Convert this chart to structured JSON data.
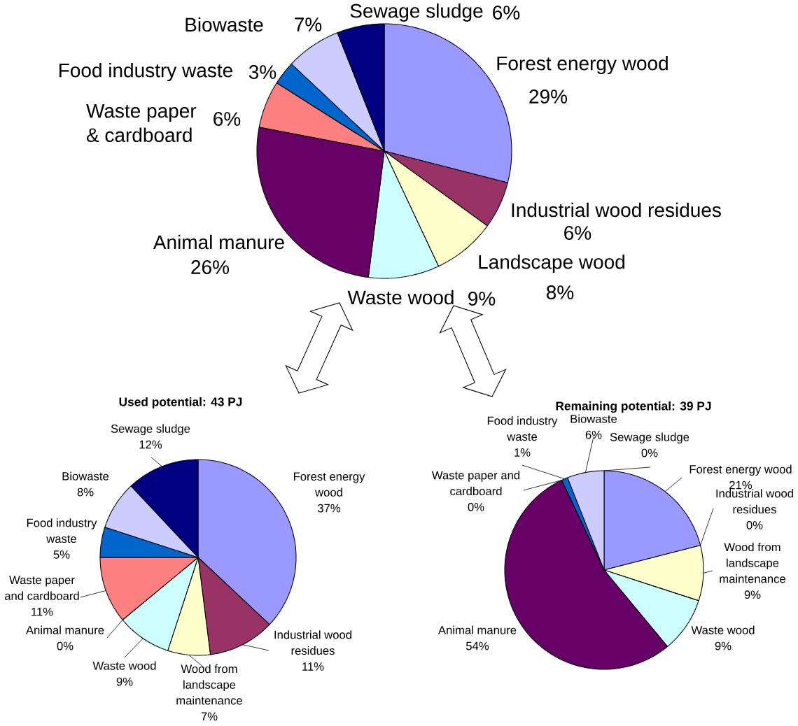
{
  "chart_data": [
    {
      "type": "pie",
      "categories": [
        "Forest energy wood",
        "Industrial wood residues",
        "Landscape wood",
        "Waste wood",
        "Animal manure",
        "Waste paper & cardboard",
        "Food industry waste",
        "Biowaste",
        "Sewage sludge"
      ],
      "values": [
        29,
        6,
        8,
        9,
        26,
        6,
        3,
        7,
        6
      ],
      "value_labels": [
        "29%",
        "6%",
        "8%",
        "9%",
        "26%",
        "6%",
        "3%",
        "7%",
        "6%"
      ],
      "colors": [
        "#9999ff",
        "#993366",
        "#ffffcc",
        "#ccffff",
        "#660066",
        "#ff8080",
        "#0066cc",
        "#ccccff",
        "#000080"
      ]
    },
    {
      "type": "pie",
      "title": "Used potential: 43 PJ",
      "categories": [
        "Forest energy wood",
        "Industrial wood residues",
        "Wood from landscape maintenance",
        "Waste wood",
        "Animal manure",
        "Waste paper and cardboard",
        "Food industry waste",
        "Biowaste",
        "Sewage sludge"
      ],
      "values": [
        37,
        11,
        7,
        9,
        0,
        11,
        5,
        8,
        12
      ],
      "value_labels": [
        "37%",
        "11%",
        "7%",
        "9%",
        "0%",
        "11%",
        "5%",
        "8%",
        "12%"
      ],
      "colors": [
        "#9999ff",
        "#993366",
        "#ffffcc",
        "#ccffff",
        "#660066",
        "#ff8080",
        "#0066cc",
        "#ccccff",
        "#000080"
      ]
    },
    {
      "type": "pie",
      "title": "Remaining potential: 39 PJ",
      "categories": [
        "Forest energy wood",
        "Industrial wood residues",
        "Wood from landscape maintenance",
        "Waste wood",
        "Animal manure",
        "Waste paper and cardboard",
        "Food industry waste",
        "Biowaste",
        "Sewage sludge"
      ],
      "values": [
        21,
        0,
        9,
        9,
        54,
        0,
        1,
        6,
        0
      ],
      "value_labels": [
        "21%",
        "0%",
        "9%",
        "9%",
        "54%",
        "0%",
        "1%",
        "6%",
        "0%"
      ],
      "colors": [
        "#9999ff",
        "#993366",
        "#ffffcc",
        "#ccffff",
        "#660066",
        "#ff8080",
        "#0066cc",
        "#ccccff",
        "#000080"
      ]
    }
  ]
}
